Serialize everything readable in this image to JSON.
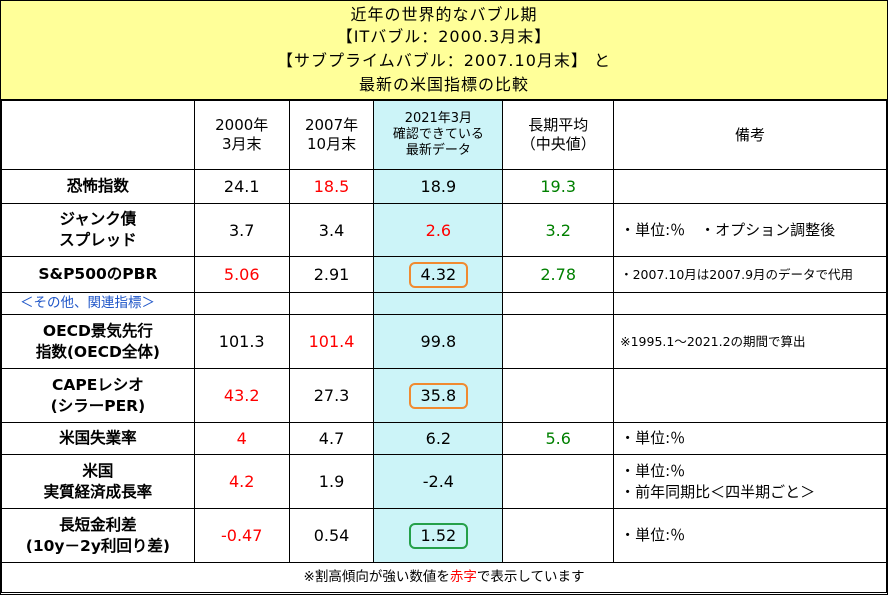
{
  "title": {
    "line1": "近年の世界的なバブル期",
    "line2": "【ITバブル：2000.3月末】",
    "line3": "【サブプライムバブル：2007.10月末】 と",
    "line4": "最新の米国指標の比較"
  },
  "header": {
    "col1": [
      "2000年",
      "3月末"
    ],
    "col2": [
      "2007年",
      "10月末"
    ],
    "col3": [
      "2021年3月",
      "確認できている",
      "最新データ"
    ],
    "col4": [
      "長期平均",
      "（中央値）"
    ],
    "col5": "備考"
  },
  "rows": {
    "fear": {
      "label": "恐怖指数",
      "v2000": "24.1",
      "v2007": "18.5",
      "latest": "18.9",
      "avg": "19.3",
      "note": ""
    },
    "junk": {
      "label": [
        "ジャンク債",
        "スプレッド"
      ],
      "v2000": "3.7",
      "v2007": "3.4",
      "latest": "2.6",
      "avg": "3.2",
      "note": "・単位:％　・オプション調整後"
    },
    "pbr": {
      "label": "S&P500のPBR",
      "v2000": "5.06",
      "v2007": "2.91",
      "latest": "4.32",
      "avg": "2.78",
      "note": "・2007.10月は2007.9月のデータで代用"
    },
    "section": {
      "label": "＜その他、関連指標＞"
    },
    "oecd": {
      "label": [
        "OECD景気先行",
        "指数(OECD全体)"
      ],
      "v2000": "101.3",
      "v2007": "101.4",
      "latest": "99.8",
      "avg": "",
      "note": "※1995.1～2021.2の期間で算出"
    },
    "cape": {
      "label": [
        "CAPEレシオ",
        "(シラーPER)"
      ],
      "v2000": "43.2",
      "v2007": "27.3",
      "latest": "35.8",
      "avg": "",
      "note": ""
    },
    "unemp": {
      "label": "米国失業率",
      "v2000": "4",
      "v2007": "4.7",
      "latest": "6.2",
      "avg": "5.6",
      "note": "・単位:％"
    },
    "gdp": {
      "label": [
        "米国",
        "実質経済成長率"
      ],
      "v2000": "4.2",
      "v2007": "1.9",
      "latest": "-2.4",
      "avg": "",
      "note": [
        "・単位:％",
        "・前年同期比＜四半期ごと＞"
      ]
    },
    "spread": {
      "label": [
        "長短金利差",
        "(10y－2y利回り差)"
      ],
      "v2000": "-0.47",
      "v2007": "0.54",
      "latest": "1.52",
      "avg": "",
      "note": "・単位:％"
    }
  },
  "footer": {
    "prefix": "※割高傾向が強い数値を",
    "red_word": "赤字",
    "suffix": "で表示しています"
  },
  "colors": {
    "title_bg": "#ffff99",
    "highlight_col": "#ccf4f8",
    "overheated_red": "#ff0000",
    "avg_green": "#008000",
    "box_orange": "#f08a30",
    "box_green": "#25a04a"
  }
}
